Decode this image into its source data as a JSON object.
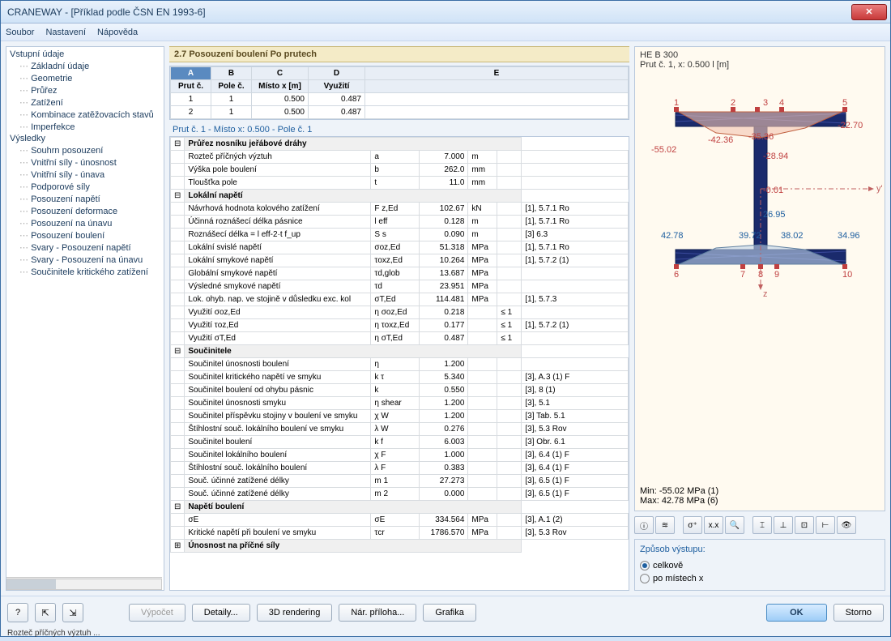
{
  "window": {
    "title": "CRANEWAY - [Příklad podle ČSN EN 1993-6]"
  },
  "menu": [
    "Soubor",
    "Nastavení",
    "Nápověda"
  ],
  "tree": {
    "group1": {
      "label": "Vstupní údaje",
      "items": [
        "Základní údaje",
        "Geometrie",
        "Průřez",
        "Zatížení",
        "Kombinace zatěžovacích stavů",
        "Imperfekce"
      ]
    },
    "group2": {
      "label": "Výsledky",
      "items": [
        "Souhrn posouzení",
        "Vnitřní síly - únosnost",
        "Vnitřní síly - únava",
        "Podporové síly",
        "Posouzení napětí",
        "Posouzení deformace",
        "Posouzení na únavu",
        "Posouzení boulení",
        "Svary - Posouzení napětí",
        "Svary - Posouzení na únavu",
        "Součinitele kritického zatížení"
      ]
    }
  },
  "section_title": "2.7 Posouzení boulení Po prutech",
  "top_grid": {
    "cols": [
      "A",
      "B",
      "C",
      "D",
      "E"
    ],
    "headers": [
      "Prut č.",
      "Pole č.",
      "Místo x [m]",
      "Využití",
      ""
    ],
    "rows": [
      [
        "1",
        "1",
        "0.500",
        "0.487",
        ""
      ],
      [
        "2",
        "1",
        "0.500",
        "0.487",
        ""
      ]
    ]
  },
  "sub_header": "Prut č.  1  -  Místo x:  0.500  -  Pole č.  1",
  "details": [
    {
      "type": "hdr",
      "expand": "⊟",
      "label": "Průřez nosníku jeřábové dráhy"
    },
    {
      "label": "Rozteč příčných výztuh",
      "sym": "a",
      "val": "7.000",
      "unit": "m"
    },
    {
      "label": "Výška pole boulení",
      "sym": "b",
      "val": "262.0",
      "unit": "mm"
    },
    {
      "label": "Tloušťka pole",
      "sym": "t",
      "val": "11.0",
      "unit": "mm"
    },
    {
      "type": "hdr",
      "expand": "⊟",
      "label": "Lokální napětí"
    },
    {
      "label": "Návrhová hodnota kolového zatížení",
      "sym": "F z,Ed",
      "val": "102.67",
      "unit": "kN",
      "ref": "[1], 5.7.1 Ro"
    },
    {
      "label": "Účinná roznášecí délka pásnice",
      "sym": "l eff",
      "val": "0.128",
      "unit": "m",
      "ref": "[1], 5.7.1 Ro"
    },
    {
      "label": "Roznášecí délka = l eff-2·t f_up",
      "sym": "S s",
      "val": "0.090",
      "unit": "m",
      "ref": "[3] 6.3"
    },
    {
      "label": "Lokální svislé napětí",
      "sym": "σoz,Ed",
      "val": "51.318",
      "unit": "MPa",
      "ref": "[1], 5.7.1 Ro"
    },
    {
      "label": "Lokální smykové napětí",
      "sym": "τoxz,Ed",
      "val": "10.264",
      "unit": "MPa",
      "ref": "[1], 5.7.2 (1)"
    },
    {
      "label": "Globální smykové napětí",
      "sym": "τd,glob",
      "val": "13.687",
      "unit": "MPa"
    },
    {
      "label": "Výsledné smykové napětí",
      "sym": "τd",
      "val": "23.951",
      "unit": "MPa"
    },
    {
      "label": "Lok. ohyb. nap. ve stojině v důsledku exc. kol",
      "sym": "σT,Ed",
      "val": "114.481",
      "unit": "MPa",
      "ref": "[1], 5.7.3"
    },
    {
      "label": "Využití σoz,Ed",
      "sym": "η σoz,Ed",
      "val": "0.218",
      "cond": "≤ 1"
    },
    {
      "label": "Využití τoz,Ed",
      "sym": "η τoxz,Ed",
      "val": "0.177",
      "cond": "≤ 1",
      "ref": "[1], 5.7.2 (1)"
    },
    {
      "label": "Využití σT,Ed",
      "sym": "η σT,Ed",
      "val": "0.487",
      "cond": "≤ 1"
    },
    {
      "type": "hdr",
      "expand": "⊟",
      "label": "Součinitele"
    },
    {
      "label": "Součinitel únosnosti boulení",
      "sym": "η",
      "val": "1.200"
    },
    {
      "label": "Součinitel kritického napětí ve smyku",
      "sym": "k τ",
      "val": "5.340",
      "ref": "[3], A.3 (1) F"
    },
    {
      "label": "Součinitel boulení od ohybu pásnic",
      "sym": "k",
      "val": "0.550",
      "ref": "[3], 8 (1)"
    },
    {
      "label": "Součinitel únosnosti smyku",
      "sym": "η shear",
      "val": "1.200",
      "ref": "[3], 5.1"
    },
    {
      "label": "Součinitel příspěvku stojiny v boulení ve smyku",
      "sym": "χ W",
      "val": "1.200",
      "ref": "[3] Tab. 5.1"
    },
    {
      "label": "Štíhlostní souč. lokálního boulení ve smyku",
      "sym": "λ W",
      "val": "0.276",
      "ref": "[3], 5.3 Rov"
    },
    {
      "label": "Součinitel boulení",
      "sym": "k f",
      "val": "6.003",
      "ref": "[3] Obr. 6.1"
    },
    {
      "label": "Součinitel lokálního boulení",
      "sym": "χ F",
      "val": "1.000",
      "ref": "[3], 6.4 (1) F"
    },
    {
      "label": "Štíhlostní souč. lokálního boulení",
      "sym": "λ F",
      "val": "0.383",
      "ref": "[3], 6.4 (1) F"
    },
    {
      "label": "Souč. účinné zatížené délky",
      "sym": "m 1",
      "val": "27.273",
      "ref": "[3], 6.5 (1) F"
    },
    {
      "label": "Souč. účinné zatížené délky",
      "sym": "m 2",
      "val": "0.000",
      "ref": "[3], 6.5 (1) F"
    },
    {
      "type": "hdr",
      "expand": "⊟",
      "label": "Napětí boulení"
    },
    {
      "label": "σE",
      "sym": "σE",
      "val": "334.564",
      "unit": "MPa",
      "ref": "[3], A.1 (2)"
    },
    {
      "label": "Kritické napětí při boulení ve smyku",
      "sym": "τcr",
      "val": "1786.570",
      "unit": "MPa",
      "ref": "[3], 5.3 Rov"
    },
    {
      "type": "hdr",
      "expand": "⊞",
      "label": "Únosnost na příčné síly"
    }
  ],
  "diagram": {
    "profile": "HE B 300",
    "subtitle": "Prut č. 1, x: 0.500 l [m]",
    "labels": {
      "tl1": "1",
      "tl2": "2",
      "tl3": "3",
      "tl4": "4",
      "tl5": "5",
      "bl6": "6",
      "bl7": "7",
      "bl8": "8",
      "bl9": "9",
      "bl10": "10"
    },
    "values": {
      "v1": "-55.02",
      "v2": "-42.36",
      "v3": "-35.36",
      "v4": "-28.94",
      "v5": "-22.70",
      "v6": "42.78",
      "v7": "39.72",
      "v71": "-0.01",
      "v72": "26.95",
      "v8": "38.02",
      "v9": "34.96"
    },
    "axis": {
      "y": "y'",
      "z": "z"
    },
    "min": "Min:      -55.02  MPa (1)",
    "max": "Max:      42.78  MPa (6)"
  },
  "toolbar_icons": [
    "ⓘ",
    "≋",
    "σ⁺",
    "x.x",
    "🔍",
    "⌶",
    "⊥",
    "⊡",
    "⊢",
    "👁"
  ],
  "output": {
    "title": "Způsob výstupu:",
    "opt1": "celkově",
    "opt2": "po místech x",
    "selected": 0
  },
  "buttons": {
    "calc": "Výpočet",
    "details": "Detaily...",
    "render": "3D rendering",
    "annex": "Nár. příloha...",
    "graphics": "Grafika",
    "ok": "OK",
    "cancel": "Storno"
  },
  "status": "Rozteč příčných výztuh ..."
}
